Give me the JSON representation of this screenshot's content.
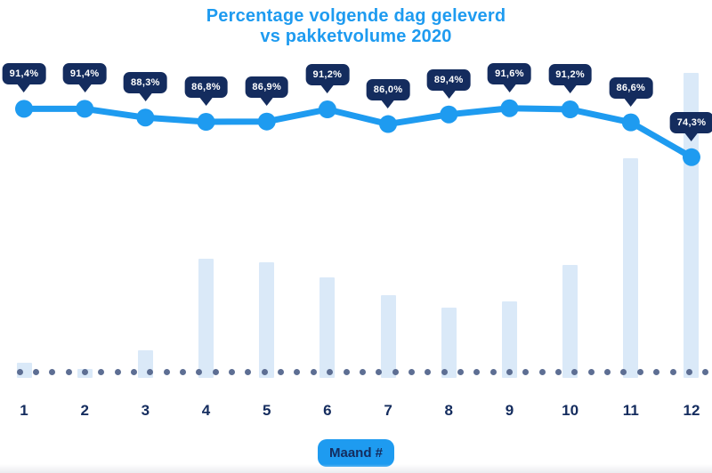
{
  "title": {
    "line1": "Percentage volgende dag geleverd",
    "line2": "vs pakketvolume 2020"
  },
  "x_axis": {
    "title": "Maand #",
    "labels": [
      "1",
      "2",
      "3",
      "4",
      "5",
      "6",
      "7",
      "8",
      "9",
      "10",
      "11",
      "12"
    ]
  },
  "colors": {
    "accent_blue": "#1E9BF0",
    "navy": "#142C5E",
    "bar_fill": "#DAE9F8",
    "baseline_dot": "#5D6E93",
    "tooltip_text": "#FFFFFF"
  },
  "chart_data": {
    "type": "line",
    "title": "Percentage volgende dag geleverd vs pakketvolume 2020",
    "categories": [
      1,
      2,
      3,
      4,
      5,
      6,
      7,
      8,
      9,
      10,
      11,
      12
    ],
    "xlabel": "Maand #",
    "ylabel": "",
    "grid": false,
    "legend_position": "none",
    "baseline_style": "dotted",
    "series": [
      {
        "name": "Percentage volgende dag geleverd",
        "type": "line",
        "unit": "%",
        "ylim": [
          0,
          100
        ],
        "values": [
          91.4,
          91.4,
          88.3,
          86.8,
          86.9,
          91.2,
          86.0,
          89.4,
          91.6,
          91.2,
          86.6,
          74.3
        ],
        "point_labels": [
          "91,4%",
          "91,4%",
          "88,3%",
          "86,8%",
          "86,9%",
          "91,2%",
          "86,0%",
          "89,4%",
          "91,6%",
          "91,2%",
          "86,6%",
          "74,3%"
        ]
      },
      {
        "name": "Pakketvolume 2020",
        "type": "bar",
        "unit": "relative volume index (estimated from bar heights, max = 100)",
        "values": [
          5,
          3,
          9,
          39,
          38,
          33,
          27,
          23,
          25,
          37,
          72,
          100
        ]
      }
    ]
  }
}
